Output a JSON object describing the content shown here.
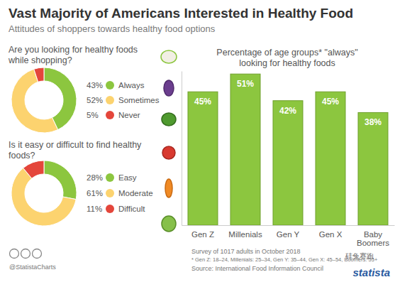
{
  "page": {
    "title": "Vast Majority of Americans Interested in Healthy Food",
    "subtitle": "Attitudes of shoppers towards healthy food options",
    "survey": "Survey of 1017 adults in October 2018",
    "note": "* Gen Z: 18–24, Millenials: 25–34, Gen Y: 35–44, Gen X: 45–54, Boomers: 55+",
    "source": "Source: International Food Information Council",
    "handle": "@StatistaCharts",
    "brand": "statista",
    "watermark": "硅兔赛跑"
  },
  "chart_data": [
    {
      "type": "donut",
      "title": "Are you looking for healthy foods while shopping?",
      "categories": [
        "Always",
        "Sometimes",
        "Never"
      ],
      "values": [
        43,
        52,
        5
      ],
      "value_labels": [
        "43%",
        "52%",
        "5%"
      ],
      "colors": [
        "#8cc63f",
        "#fcd36f",
        "#e4463b"
      ],
      "legend": "right"
    },
    {
      "type": "donut",
      "title": "Is it easy or difficult to find healthy foods?",
      "categories": [
        "Easy",
        "Moderate",
        "Difficult"
      ],
      "values": [
        28,
        61,
        11
      ],
      "value_labels": [
        "28%",
        "61%",
        "11%"
      ],
      "colors": [
        "#8cc63f",
        "#fcd36f",
        "#e4463b"
      ],
      "legend": "right"
    },
    {
      "type": "bar",
      "title": "Percentage of age groups* \"always\" looking for healthy foods",
      "categories": [
        "Gen Z",
        "Millenials",
        "Gen Y",
        "Gen X",
        "Baby Boomers"
      ],
      "values": [
        45,
        51,
        42,
        45,
        38
      ],
      "value_labels": [
        "45%",
        "51%",
        "42%",
        "45%",
        "38%"
      ],
      "color": "#8cc63f",
      "ylim": [
        0,
        52
      ],
      "yticks": [],
      "tick_labels": "x",
      "data_labels": true
    }
  ]
}
